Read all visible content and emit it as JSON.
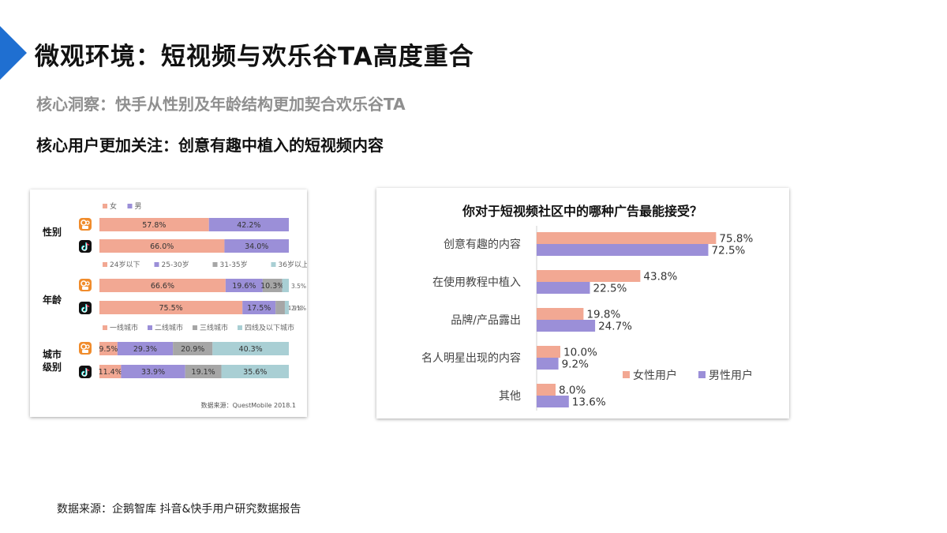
{
  "page": {
    "title": "微观环境：短视频与欢乐谷TA高度重合",
    "subtitle": "核心洞察：快手从性别及年龄结构更加契合欢乐谷TA",
    "heading": "核心用户更加关注：创意有趣中植入的短视频内容",
    "footer": "数据来源：企鹅智库 抖音&快手用户研究数据报告",
    "accent_color": "#1f6fd1"
  },
  "chart_data": [
    {
      "type": "bar",
      "stacked": true,
      "orientation": "horizontal",
      "source": "数据来源：QuestMobile 2018.1",
      "app_icons": [
        "kuaishou-icon",
        "douyin-icon"
      ],
      "groups": [
        {
          "label": "性别",
          "legend": [
            "女",
            "男"
          ],
          "colors": [
            "#f2a893",
            "#9b8fd8"
          ],
          "rows": [
            {
              "app": "kuaishou",
              "values": [
                57.8,
                42.2
              ],
              "labels": [
                "57.8%",
                "42.2%"
              ]
            },
            {
              "app": "douyin",
              "values": [
                66.0,
                34.0
              ],
              "labels": [
                "66.0%",
                "34.0%"
              ]
            }
          ]
        },
        {
          "label": "年龄",
          "legend": [
            "24岁以下",
            "25-30岁",
            "31-35岁",
            "36岁以上"
          ],
          "colors": [
            "#f2a893",
            "#9b8fd8",
            "#a6a6a6",
            "#a9cfd4"
          ],
          "rows": [
            {
              "app": "kuaishou",
              "values": [
                66.6,
                19.6,
                10.3,
                3.5
              ],
              "labels": [
                "66.6%",
                "19.6%",
                "10.3%",
                "3.5%"
              ]
            },
            {
              "app": "douyin",
              "values": [
                75.5,
                17.5,
                4.9,
                2.1
              ],
              "labels": [
                "75.5%",
                "17.5%",
                "4.9%",
                "2.1%"
              ]
            }
          ]
        },
        {
          "label": "城市\n级别",
          "legend": [
            "一线城市",
            "二线城市",
            "三线城市",
            "四线及以下城市"
          ],
          "colors": [
            "#f2a893",
            "#9b8fd8",
            "#a6a6a6",
            "#a9cfd4"
          ],
          "rows": [
            {
              "app": "kuaishou",
              "values": [
                9.5,
                29.3,
                20.9,
                40.3
              ],
              "labels": [
                "9.5%",
                "29.3%",
                "20.9%",
                "40.3%"
              ]
            },
            {
              "app": "douyin",
              "values": [
                11.4,
                33.9,
                19.1,
                35.6
              ],
              "labels": [
                "11.4%",
                "33.9%",
                "19.1%",
                "35.6%"
              ]
            }
          ]
        }
      ]
    },
    {
      "type": "bar",
      "orientation": "horizontal",
      "title": "你对于短视频社区中的哪种广告最能接受？",
      "categories": [
        "创意有趣的内容",
        "在使用教程中植入",
        "品牌/产品露出",
        "名人明星出现的内容",
        "其他"
      ],
      "series": [
        {
          "name": "女性用户",
          "color": "#f2a893",
          "values": [
            75.8,
            43.8,
            19.8,
            10.0,
            8.0
          ],
          "labels": [
            "75.8%",
            "43.8%",
            "19.8%",
            "10.0%",
            "8.0%"
          ]
        },
        {
          "name": "男性用户",
          "color": "#9b8fd8",
          "values": [
            72.5,
            22.5,
            24.7,
            9.2,
            13.6
          ],
          "labels": [
            "72.5%",
            "22.5%",
            "24.7%",
            "9.2%",
            "13.6%"
          ]
        }
      ],
      "legend_position": "right",
      "xlim": [
        0,
        100
      ]
    }
  ]
}
